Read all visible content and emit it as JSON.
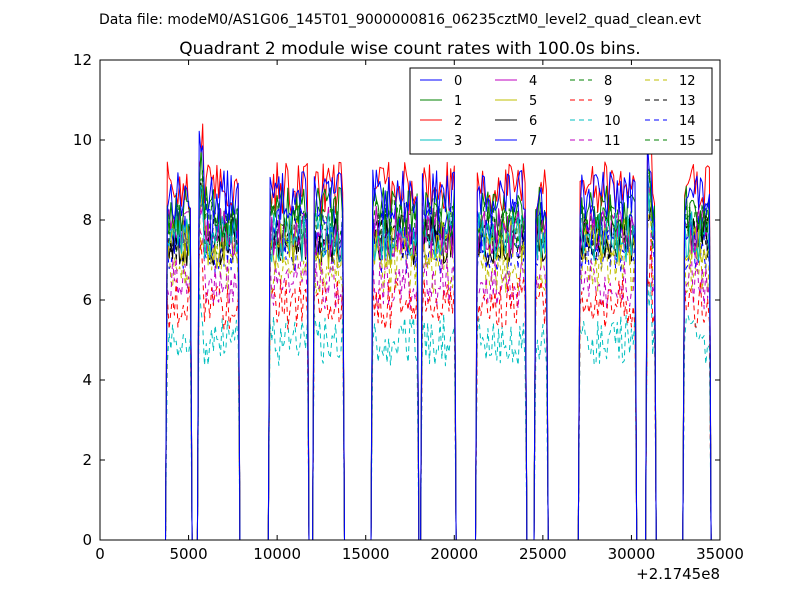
{
  "figure": {
    "suptitle": "Data file: modeM0/AS1G06_145T01_9000000816_06235cztM0_level2_quad_clean.evt",
    "offset_label": "+2.1745e8"
  },
  "chart_data": {
    "type": "line",
    "title": "Quadrant 2 module wise count rates with 100.0s bins.",
    "xlabel": "",
    "ylabel": "",
    "xlim": [
      0,
      35000
    ],
    "ylim": [
      0,
      12
    ],
    "x_offset": 217450000,
    "xticks": [
      0,
      5000,
      10000,
      15000,
      20000,
      25000,
      30000,
      35000
    ],
    "yticks": [
      0,
      2,
      4,
      6,
      8,
      10,
      12
    ],
    "grid": false,
    "legend_placement": "top-right",
    "legend_columns": 4,
    "on_intervals": [
      [
        3800,
        5100
      ],
      [
        5600,
        7800
      ],
      [
        9600,
        11700
      ],
      [
        12100,
        13700
      ],
      [
        15400,
        17900
      ],
      [
        18200,
        20000
      ],
      [
        21300,
        24000
      ],
      [
        24600,
        25200
      ],
      [
        27100,
        30200
      ],
      [
        30900,
        31300
      ],
      [
        33000,
        34400
      ]
    ],
    "series": [
      {
        "name": "0",
        "color": "#0000ff",
        "dash": "solid",
        "level": 8.6
      },
      {
        "name": "1",
        "color": "#008000",
        "dash": "solid",
        "level": 8.2
      },
      {
        "name": "2",
        "color": "#ff0000",
        "dash": "solid",
        "level": 8.8
      },
      {
        "name": "3",
        "color": "#00bfbf",
        "dash": "solid",
        "level": 7.6
      },
      {
        "name": "4",
        "color": "#bf00bf",
        "dash": "solid",
        "level": 7.7
      },
      {
        "name": "5",
        "color": "#bfbf00",
        "dash": "solid",
        "level": 7.4
      },
      {
        "name": "6",
        "color": "#000000",
        "dash": "solid",
        "level": 7.5
      },
      {
        "name": "7",
        "color": "#0000ff",
        "dash": "solid",
        "level": 7.8
      },
      {
        "name": "8",
        "color": "#008000",
        "dash": "dashed",
        "level": 7.9
      },
      {
        "name": "9",
        "color": "#ff0000",
        "dash": "dashed",
        "level": 5.9
      },
      {
        "name": "10",
        "color": "#00bfbf",
        "dash": "dashed",
        "level": 5.0
      },
      {
        "name": "11",
        "color": "#bf00bf",
        "dash": "dashed",
        "level": 6.4
      },
      {
        "name": "12",
        "color": "#bfbf00",
        "dash": "dashed",
        "level": 6.8
      },
      {
        "name": "13",
        "color": "#000000",
        "dash": "dashed",
        "level": 7.6
      },
      {
        "name": "14",
        "color": "#0000ff",
        "dash": "dashed",
        "level": 7.3
      },
      {
        "name": "15",
        "color": "#008000",
        "dash": "dashed",
        "level": 7.8
      }
    ]
  }
}
